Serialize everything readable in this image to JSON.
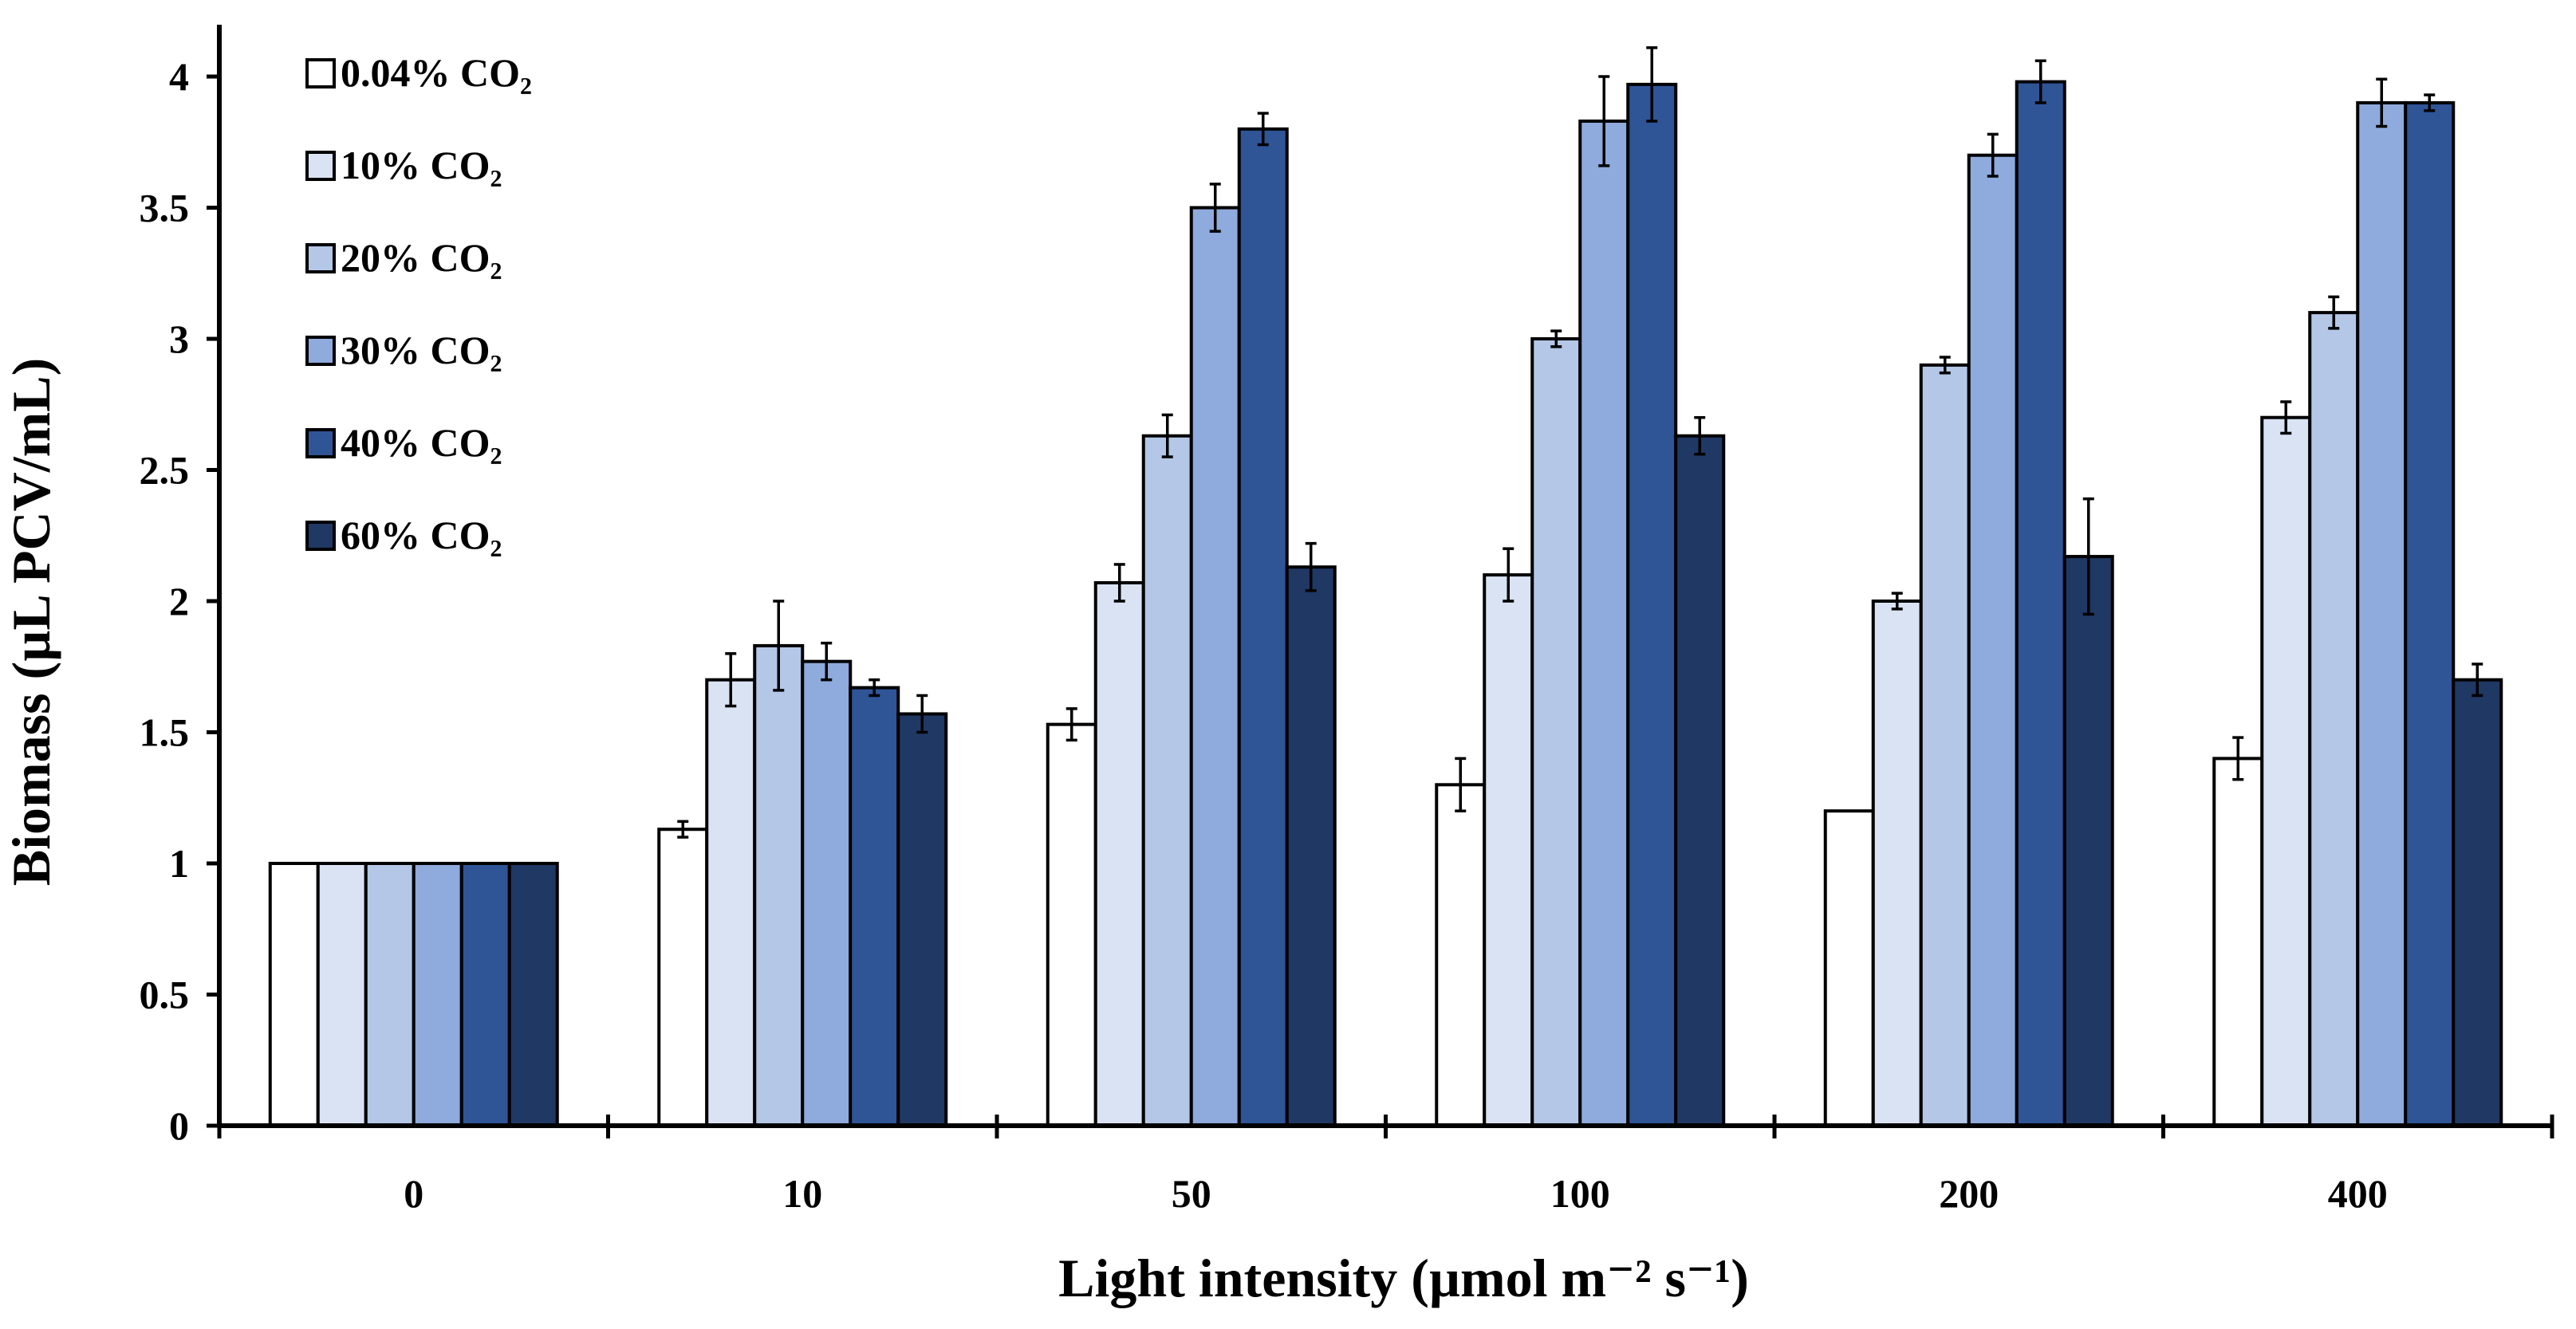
{
  "chart_data": {
    "type": "bar",
    "title": "",
    "xlabel": "Light intensity (µmol m⁻² s⁻¹)",
    "ylabel": "Biomass (µL PCV/mL)",
    "ylim": [
      0,
      4
    ],
    "yticks": [
      "0",
      "0.5",
      "1",
      "1.5",
      "2",
      "2.5",
      "3",
      "3.5",
      "4"
    ],
    "grid": false,
    "legend_position": "top-left",
    "categories": [
      "0",
      "10",
      "50",
      "100",
      "200",
      "400"
    ],
    "series": [
      {
        "name": "0.04% CO₂",
        "color": "#ffffff",
        "values": [
          1.0,
          1.13,
          1.53,
          1.3,
          1.2,
          1.4
        ],
        "errors": [
          0,
          0.03,
          0.06,
          0.1,
          0,
          0.08
        ]
      },
      {
        "name": "10% CO₂",
        "color": "#dae3f3",
        "values": [
          1.0,
          1.7,
          2.07,
          2.1,
          2.0,
          2.7
        ],
        "errors": [
          0,
          0.1,
          0.07,
          0.1,
          0.03,
          0.06
        ]
      },
      {
        "name": "20% CO₂",
        "color": "#b4c7e7",
        "values": [
          1.0,
          1.83,
          2.63,
          3.0,
          2.9,
          3.1
        ],
        "errors": [
          0,
          0.17,
          0.08,
          0.03,
          0.03,
          0.06
        ]
      },
      {
        "name": "30% CO₂",
        "color": "#8faadc",
        "values": [
          1.0,
          1.77,
          3.5,
          3.83,
          3.7,
          3.9
        ],
        "errors": [
          0,
          0.07,
          0.09,
          0.17,
          0.08,
          0.09
        ]
      },
      {
        "name": "40% CO₂",
        "color": "#2f5597",
        "values": [
          1.0,
          1.67,
          3.8,
          3.97,
          3.98,
          3.9
        ],
        "errors": [
          0,
          0.03,
          0.06,
          0.14,
          0.08,
          0.03
        ]
      },
      {
        "name": "60% CO₂",
        "color": "#203864",
        "values": [
          1.0,
          1.57,
          2.13,
          2.63,
          2.17,
          1.7
        ],
        "errors": [
          0,
          0.07,
          0.09,
          0.07,
          0.22,
          0.06
        ]
      }
    ]
  }
}
